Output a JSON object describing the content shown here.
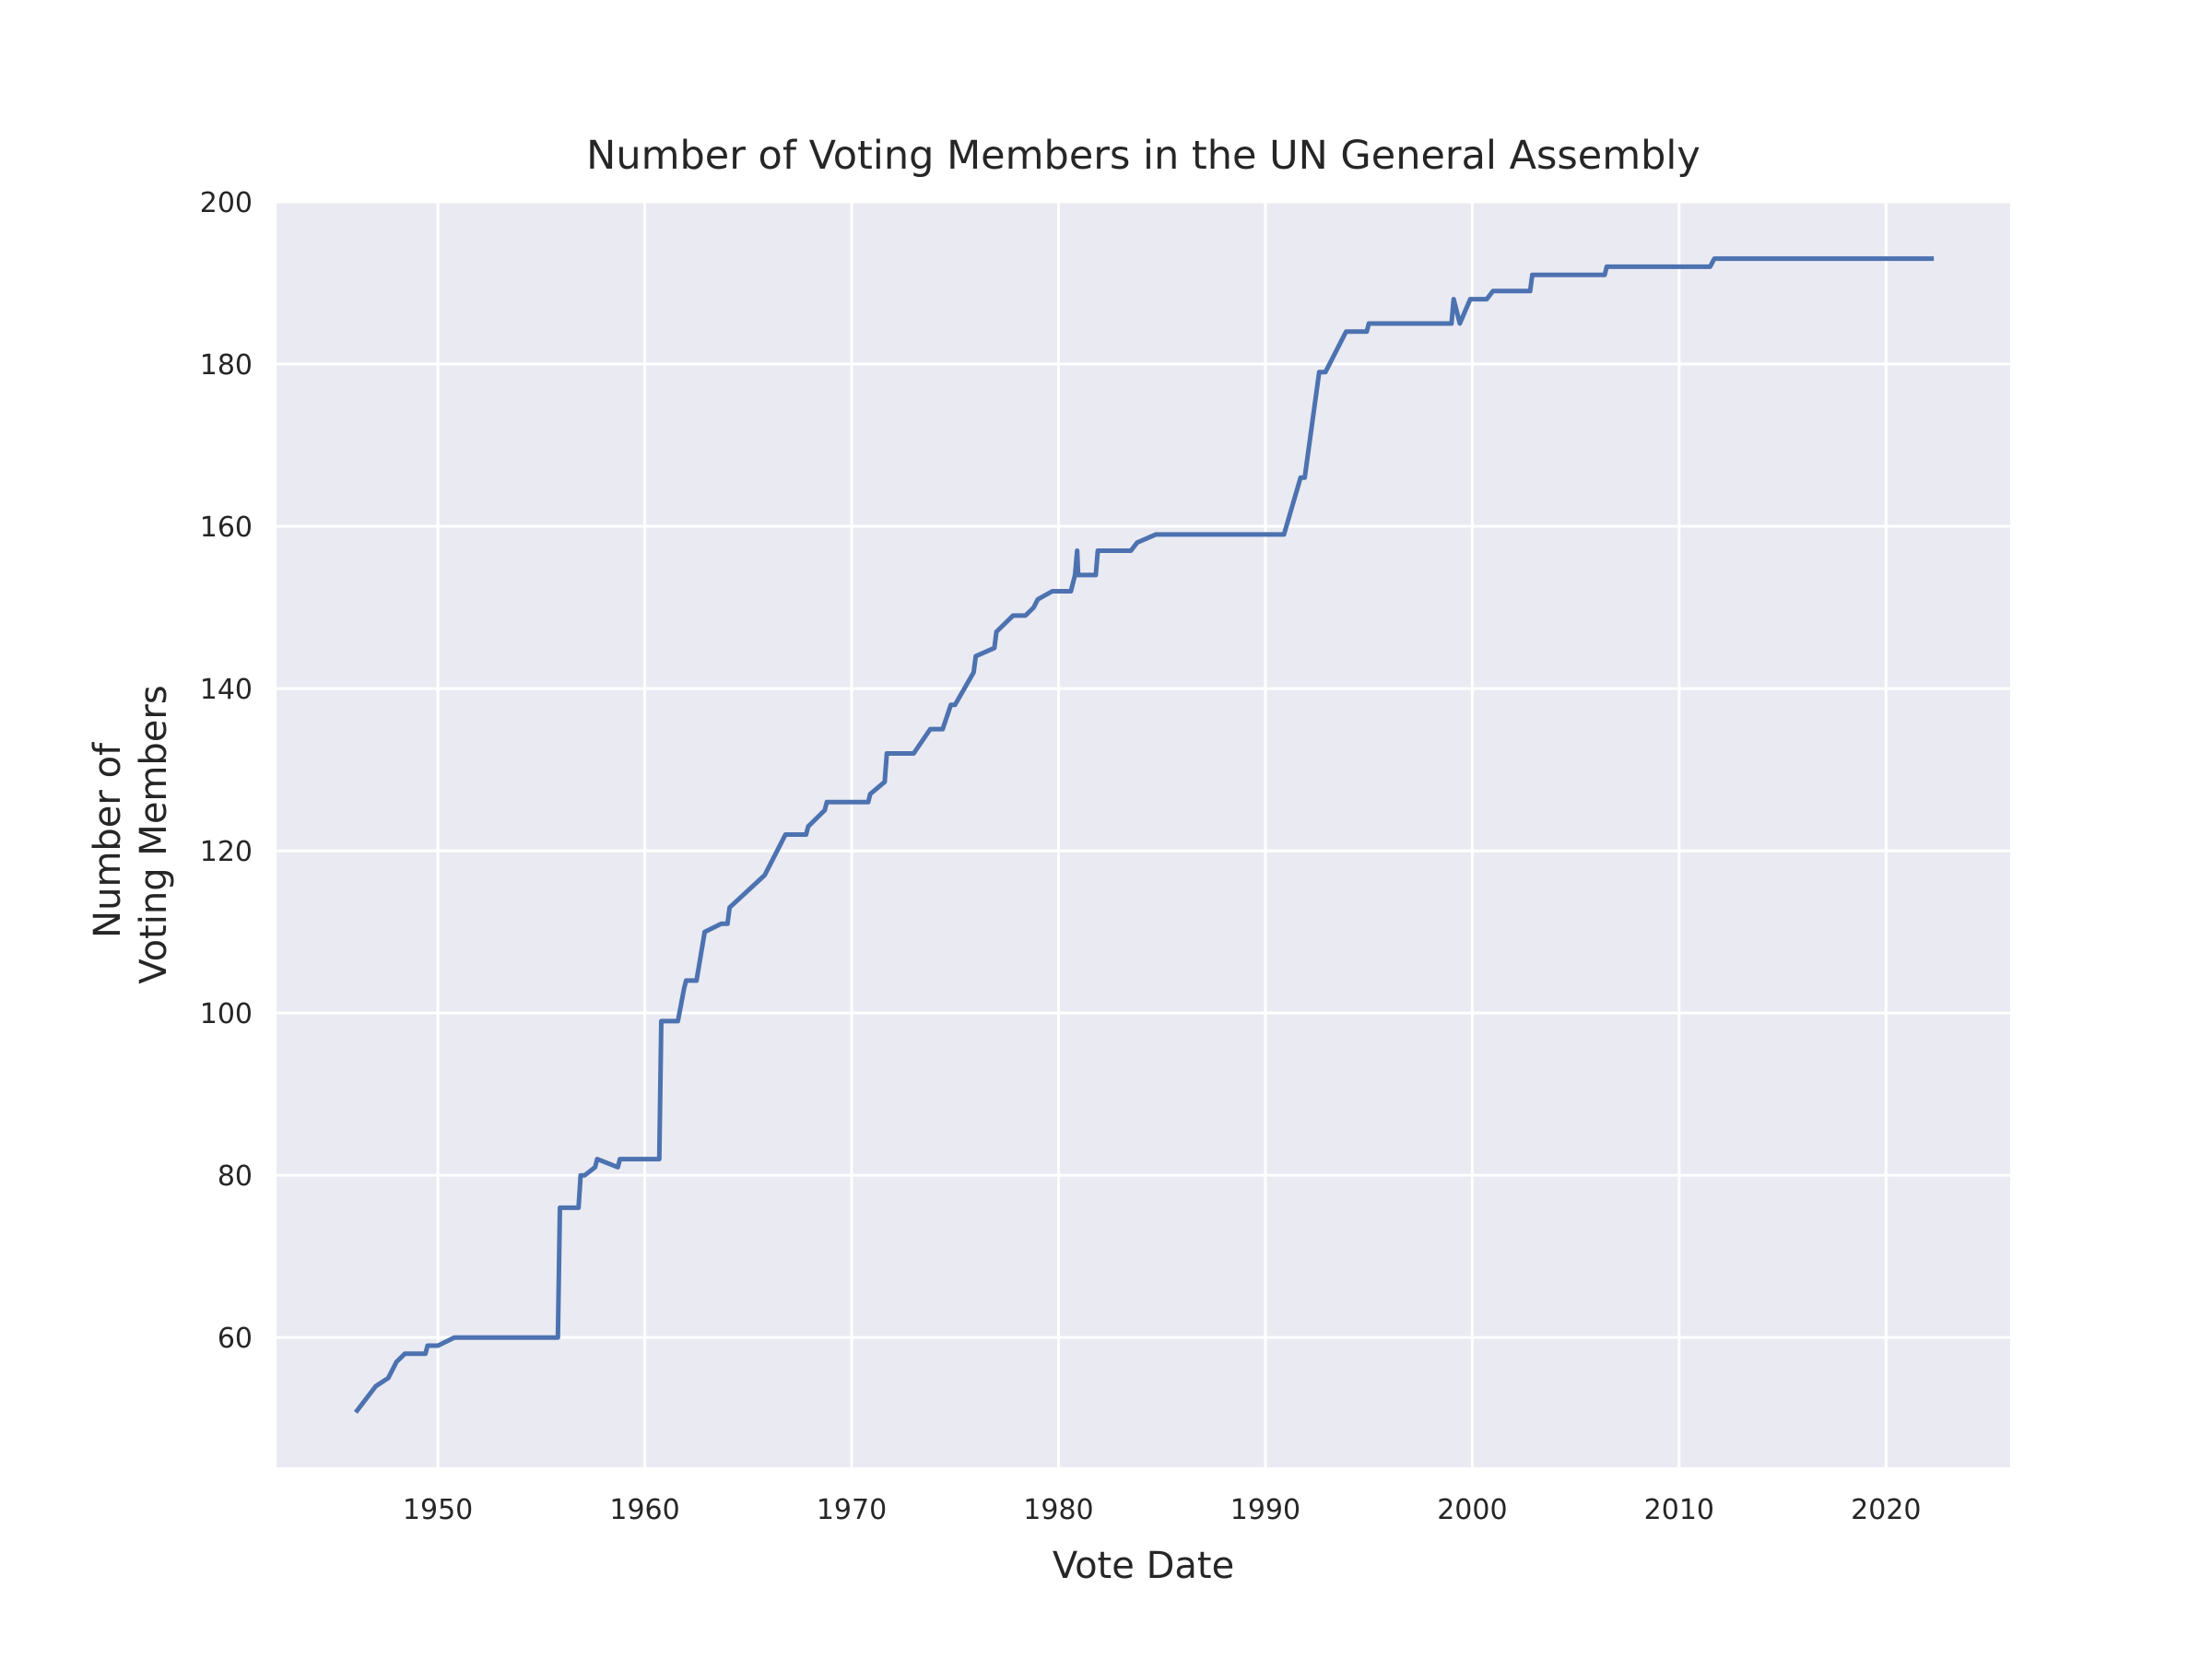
{
  "chart_data": {
    "type": "line",
    "title": "Number of Voting Members in the UN General Assembly",
    "xlabel": "Vote Date",
    "ylabel": [
      "Number of",
      "Voting Members"
    ],
    "xlim": [
      1942.2,
      2026
    ],
    "ylim": [
      44,
      200
    ],
    "xticks": [
      1950,
      1960,
      1970,
      1980,
      1990,
      2000,
      2010,
      2020
    ],
    "yticks": [
      60,
      80,
      100,
      120,
      140,
      160,
      180,
      200
    ],
    "grid": true,
    "legend": "none",
    "series": [
      {
        "color": "#4c72b0",
        "x": [
          1946.1,
          1947.0,
          1947.6,
          1948.0,
          1948.4,
          1949.4,
          1949.5,
          1950.0,
          1950.8,
          1951.5,
          1955.8,
          1955.9,
          1956.0,
          1956.8,
          1956.9,
          1957.1,
          1957.6,
          1957.7,
          1958.7,
          1958.8,
          1960.7,
          1960.8,
          1961.6,
          1961.9,
          1962.0,
          1962.5,
          1962.9,
          1963.7,
          1964.0,
          1964.1,
          1965.8,
          1966.6,
          1966.8,
          1967.8,
          1967.9,
          1968.7,
          1968.8,
          1970.8,
          1970.9,
          1971.6,
          1971.7,
          1973.0,
          1973.8,
          1974.4,
          1974.8,
          1975.0,
          1975.9,
          1976.0,
          1976.9,
          1977.0,
          1977.8,
          1978.4,
          1978.8,
          1979.0,
          1979.7,
          1980.6,
          1980.8,
          1980.9,
          1980.95,
          1981.0,
          1981.8,
          1981.9,
          1983.5,
          1983.8,
          1984.7,
          1990.9,
          1991.7,
          1991.9,
          1992.6,
          1992.9,
          1993.9,
          1994.9,
          1995.0,
          1999.0,
          1999.1,
          1999.4,
          1999.9,
          2000.7,
          2001.0,
          2002.8,
          2002.9,
          2006.4,
          2006.5,
          2011.5,
          2011.7,
          2022.2
        ],
        "y": [
          51,
          54,
          55,
          57,
          58,
          58,
          59,
          59,
          60,
          60,
          60,
          76,
          76,
          76,
          80,
          80,
          81,
          82,
          81,
          82,
          82,
          99,
          99,
          103,
          104,
          104,
          110,
          111,
          111,
          113,
          117,
          121,
          122,
          122,
          123,
          125,
          126,
          126,
          127,
          128.5,
          132,
          132,
          135,
          135,
          138,
          138,
          142,
          144,
          145,
          147,
          149,
          149,
          150,
          151,
          152,
          152,
          154,
          157,
          154,
          154,
          154,
          157,
          157,
          158,
          159,
          159,
          166,
          166,
          179,
          179,
          184,
          184,
          185,
          185,
          188,
          185,
          188,
          188,
          189,
          189,
          191,
          191,
          192,
          192,
          193,
          193
        ]
      }
    ]
  }
}
